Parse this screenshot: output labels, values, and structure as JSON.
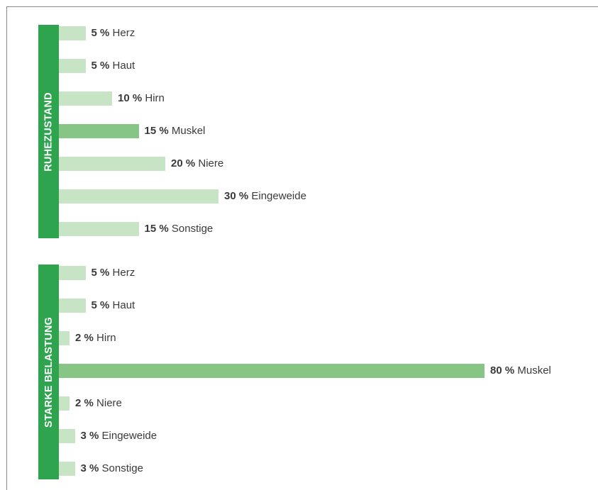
{
  "colors": {
    "label_bg": "#2ea44f",
    "bar_light": "#c7e5c4",
    "bar_highlight": "#86c584"
  },
  "chart_data": [
    {
      "type": "bar",
      "orientation": "horizontal",
      "panel_label": "RUHEZUSTAND",
      "unit": "%",
      "categories": [
        "Herz",
        "Haut",
        "Hirn",
        "Muskel",
        "Niere",
        "Eingeweide",
        "Sonstige"
      ],
      "values": [
        5,
        5,
        10,
        15,
        20,
        30,
        15
      ],
      "value_labels": [
        "5 %",
        "5 %",
        "10 %",
        "15 %",
        "20 %",
        "30 %",
        "15 %"
      ],
      "highlighted": "Muskel"
    },
    {
      "type": "bar",
      "orientation": "horizontal",
      "panel_label": "STARKE BELASTUNG",
      "unit": "%",
      "categories": [
        "Herz",
        "Haut",
        "Hirn",
        "Muskel",
        "Niere",
        "Eingeweide",
        "Sonstige"
      ],
      "values": [
        5,
        5,
        2,
        80,
        2,
        3,
        3
      ],
      "value_labels": [
        "5 %",
        "5 %",
        "2 %",
        "80 %",
        "2 %",
        "3 %",
        "3 %"
      ],
      "highlighted": "Muskel"
    }
  ]
}
